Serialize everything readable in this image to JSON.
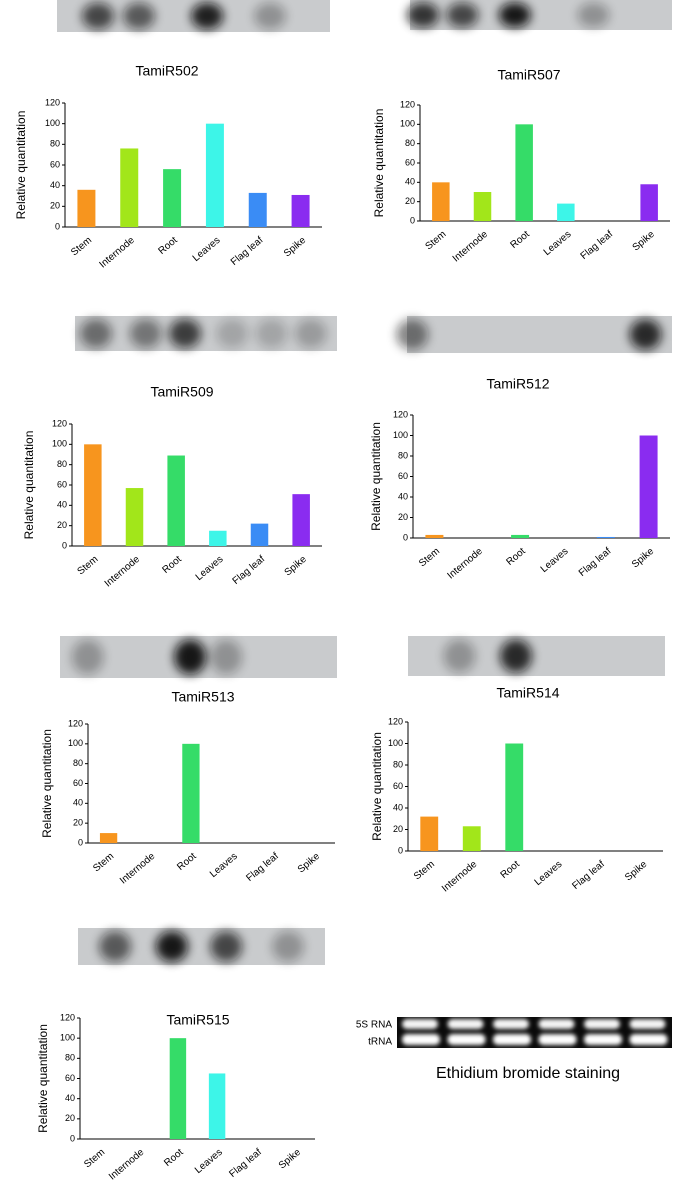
{
  "chart_data": [
    {
      "type": "bar",
      "title": "TamiR502",
      "y_label": "Relative quantitation",
      "categories": [
        "Stem",
        "Internode",
        "Root",
        "Leaves",
        "Flag leaf",
        "Spike"
      ],
      "values": [
        36,
        76,
        56,
        100,
        33,
        31
      ],
      "colors": [
        "#f7951e",
        "#a2e61a",
        "#35dc68",
        "#3df5e8",
        "#3a8cf5",
        "#8a2cf0"
      ],
      "ylim": [
        0,
        120
      ],
      "yticks": [
        0,
        20,
        40,
        60,
        80,
        100,
        120
      ]
    },
    {
      "type": "bar",
      "title": "TamiR507",
      "y_label": "Relative quantitation",
      "categories": [
        "Stem",
        "Internode",
        "Root",
        "Leaves",
        "Flag leaf",
        "Spike"
      ],
      "values": [
        40,
        30,
        100,
        18,
        0,
        38
      ],
      "colors": [
        "#f7951e",
        "#a2e61a",
        "#35dc68",
        "#3df5e8",
        "#3a8cf5",
        "#8a2cf0"
      ],
      "ylim": [
        0,
        120
      ],
      "yticks": [
        0,
        20,
        40,
        60,
        80,
        100,
        120
      ]
    },
    {
      "type": "bar",
      "title": "TamiR509",
      "y_label": "Relative quantitation",
      "categories": [
        "Stem",
        "Internode",
        "Root",
        "Leaves",
        "Flag leaf",
        "Spike"
      ],
      "values": [
        100,
        57,
        89,
        15,
        22,
        51
      ],
      "colors": [
        "#f7951e",
        "#a2e61a",
        "#35dc68",
        "#3df5e8",
        "#3a8cf5",
        "#8a2cf0"
      ],
      "ylim": [
        0,
        120
      ],
      "yticks": [
        0,
        20,
        40,
        60,
        80,
        100,
        120
      ]
    },
    {
      "type": "bar",
      "title": "TamiR512",
      "y_label": "Relative quantitation",
      "categories": [
        "Stem",
        "Internode",
        "Root",
        "Leaves",
        "Flag leaf",
        "Spike"
      ],
      "values": [
        3,
        0,
        3,
        0,
        1,
        100
      ],
      "colors": [
        "#f7951e",
        "#a2e61a",
        "#35dc68",
        "#3df5e8",
        "#3a8cf5",
        "#8a2cf0"
      ],
      "ylim": [
        0,
        120
      ],
      "yticks": [
        0,
        20,
        40,
        60,
        80,
        100,
        120
      ]
    },
    {
      "type": "bar",
      "title": "TamiR513",
      "y_label": "Relative quantitation",
      "categories": [
        "Stem",
        "Internode",
        "Root",
        "Leaves",
        "Flag leaf",
        "Spike"
      ],
      "values": [
        10,
        0,
        100,
        0,
        0,
        0
      ],
      "colors": [
        "#f7951e",
        "#a2e61a",
        "#35dc68",
        "#3df5e8",
        "#3a8cf5",
        "#8a2cf0"
      ],
      "ylim": [
        0,
        120
      ],
      "yticks": [
        0,
        20,
        40,
        60,
        80,
        100,
        120
      ]
    },
    {
      "type": "bar",
      "title": "TamiR514",
      "y_label": "Relative quantitation",
      "categories": [
        "Stem",
        "Internode",
        "Root",
        "Leaves",
        "Flag leaf",
        "Spike"
      ],
      "values": [
        32,
        23,
        100,
        0,
        0,
        0
      ],
      "colors": [
        "#f7951e",
        "#a2e61a",
        "#35dc68",
        "#3df5e8",
        "#3a8cf5",
        "#8a2cf0"
      ],
      "ylim": [
        0,
        120
      ],
      "yticks": [
        0,
        20,
        40,
        60,
        80,
        100,
        120
      ]
    },
    {
      "type": "bar",
      "title": "TamiR515",
      "y_label": "Relative quantitation",
      "categories": [
        "Stem",
        "Internode",
        "Root",
        "Leaves",
        "Flag leaf",
        "Spike"
      ],
      "values": [
        0,
        0,
        100,
        65,
        0,
        0
      ],
      "colors": [
        "#f7951e",
        "#a2e61a",
        "#35dc68",
        "#3df5e8",
        "#3a8cf5",
        "#8a2cf0"
      ],
      "ylim": [
        0,
        120
      ],
      "yticks": [
        0,
        20,
        40,
        60,
        80,
        100,
        120
      ]
    }
  ],
  "gel": {
    "row_labels": [
      "5S RNA",
      "tRNA"
    ],
    "caption": "Ethidium bromide staining"
  }
}
